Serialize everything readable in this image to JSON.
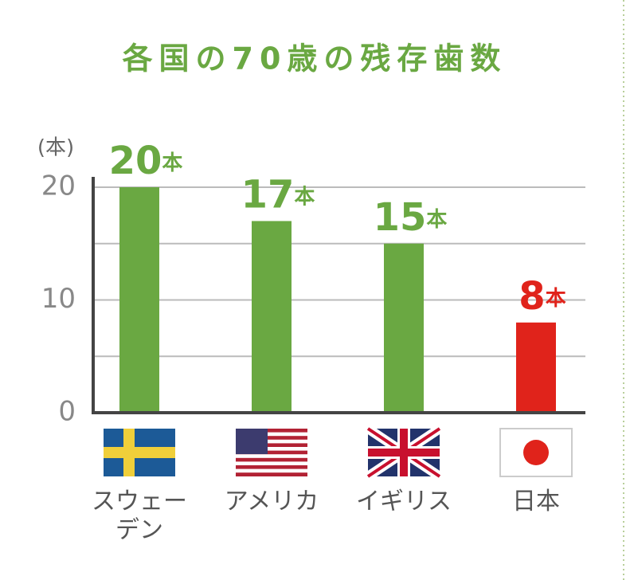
{
  "chart_data": {
    "type": "bar",
    "title": "各国の70歳の残存歯数",
    "y_label": "(本)",
    "categories": [
      "スウェーデン",
      "アメリカ",
      "イギリス",
      "日本"
    ],
    "values": [
      20,
      17,
      15,
      8
    ],
    "value_labels": [
      "20本",
      "17本",
      "15本",
      "8本"
    ],
    "colors": [
      "#6aa842",
      "#6aa842",
      "#6aa842",
      "#e0231b"
    ],
    "ylim": [
      0,
      20
    ],
    "yticks": [
      0,
      10,
      20
    ],
    "minor_grid": [
      5,
      15
    ],
    "grid": true
  }
}
